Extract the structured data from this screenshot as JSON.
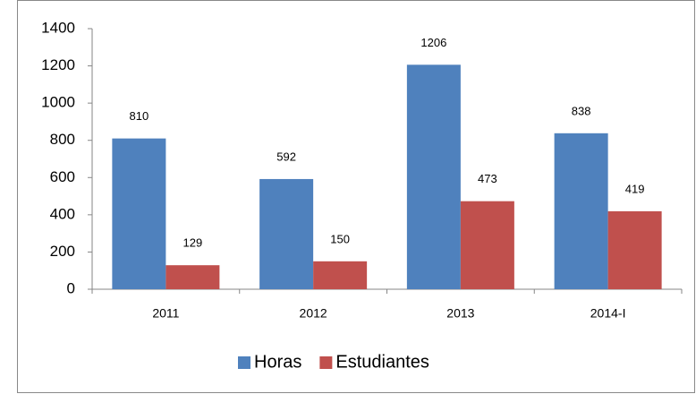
{
  "chart_data": {
    "type": "bar",
    "categories": [
      "2011",
      "2012",
      "2013",
      "2014-I"
    ],
    "series": [
      {
        "name": "Horas",
        "color": "#4f81bd",
        "values": [
          810,
          592,
          1206,
          838
        ]
      },
      {
        "name": "Estudiantes",
        "color": "#c0504d",
        "values": [
          129,
          150,
          473,
          419
        ]
      }
    ],
    "ylim": [
      0,
      1400
    ],
    "yticks": [
      0,
      200,
      400,
      600,
      800,
      1000,
      1200,
      1400
    ],
    "grid": false,
    "legend": "bottom",
    "data_labels": true
  }
}
